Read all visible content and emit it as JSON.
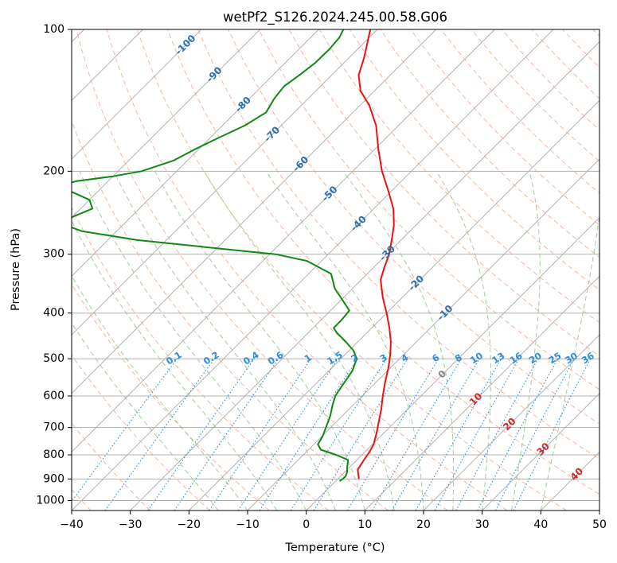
{
  "chart_data": {
    "type": "line",
    "subtype": "skew-t log-p",
    "title": "wetPf2_S126.2024.245.00.58.G06",
    "xlabel": "Temperature (°C)",
    "ylabel": "Pressure (hPa)",
    "xlim": [
      -40,
      50
    ],
    "ylim": [
      1050,
      100
    ],
    "y_scale": "log",
    "grid": true,
    "x_ticks": [
      -40,
      -30,
      -20,
      -10,
      0,
      10,
      20,
      30,
      40,
      50
    ],
    "x_tick_labels": [
      "−40",
      "−30",
      "−20",
      "−10",
      "0",
      "10",
      "20",
      "30",
      "40",
      "50"
    ],
    "y_ticks": [
      1000,
      900,
      800,
      700,
      600,
      500,
      400,
      300,
      200,
      100
    ],
    "y_tick_labels": [
      "1000",
      "900",
      "800",
      "700",
      "600",
      "500",
      "400",
      "300",
      "200",
      "100"
    ],
    "series": [
      {
        "key": "temperature",
        "color": "#ee1111",
        "points": [
          {
            "p": 900,
            "t": 3.6
          },
          {
            "p": 860,
            "t": 1.8
          },
          {
            "p": 820,
            "t": 1.2
          },
          {
            "p": 790,
            "t": 0.8
          },
          {
            "p": 760,
            "t": 0.2
          },
          {
            "p": 720,
            "t": -1.2
          },
          {
            "p": 680,
            "t": -2.8
          },
          {
            "p": 640,
            "t": -4.5
          },
          {
            "p": 600,
            "t": -6.5
          },
          {
            "p": 560,
            "t": -8.5
          },
          {
            "p": 520,
            "t": -10.5
          },
          {
            "p": 490,
            "t": -12.3
          },
          {
            "p": 460,
            "t": -14.4
          },
          {
            "p": 430,
            "t": -17.0
          },
          {
            "p": 400,
            "t": -20.0
          },
          {
            "p": 370,
            "t": -23.4
          },
          {
            "p": 340,
            "t": -26.7
          },
          {
            "p": 320,
            "t": -28.2
          },
          {
            "p": 300,
            "t": -29.6
          },
          {
            "p": 280,
            "t": -31.6
          },
          {
            "p": 260,
            "t": -33.8
          },
          {
            "p": 240,
            "t": -36.7
          },
          {
            "p": 220,
            "t": -40.6
          },
          {
            "p": 200,
            "t": -45.0
          },
          {
            "p": 180,
            "t": -49.3
          },
          {
            "p": 160,
            "t": -53.8
          },
          {
            "p": 145,
            "t": -58.4
          },
          {
            "p": 135,
            "t": -62.4
          },
          {
            "p": 125,
            "t": -65.4
          },
          {
            "p": 115,
            "t": -67.4
          },
          {
            "p": 108,
            "t": -69.1
          },
          {
            "p": 100,
            "t": -71.2
          }
        ]
      },
      {
        "key": "dewpoint",
        "color": "#118811",
        "points": [
          {
            "p": 910,
            "t": 0.7
          },
          {
            "p": 890,
            "t": 0.9
          },
          {
            "p": 870,
            "t": 0.4
          },
          {
            "p": 850,
            "t": -0.4
          },
          {
            "p": 820,
            "t": -1.5
          },
          {
            "p": 800,
            "t": -4.4
          },
          {
            "p": 780,
            "t": -7.9
          },
          {
            "p": 760,
            "t": -9.3
          },
          {
            "p": 730,
            "t": -9.9
          },
          {
            "p": 700,
            "t": -10.8
          },
          {
            "p": 660,
            "t": -12.1
          },
          {
            "p": 630,
            "t": -13.4
          },
          {
            "p": 600,
            "t": -14.6
          },
          {
            "p": 560,
            "t": -15.4
          },
          {
            "p": 530,
            "t": -16.0
          },
          {
            "p": 500,
            "t": -17.3
          },
          {
            "p": 480,
            "t": -19.3
          },
          {
            "p": 460,
            "t": -22.1
          },
          {
            "p": 440,
            "t": -25.2
          },
          {
            "p": 430,
            "t": -26.5
          },
          {
            "p": 415,
            "t": -26.5
          },
          {
            "p": 395,
            "t": -26.8
          },
          {
            "p": 375,
            "t": -29.8
          },
          {
            "p": 355,
            "t": -33.0
          },
          {
            "p": 330,
            "t": -36.2
          },
          {
            "p": 310,
            "t": -42.5
          },
          {
            "p": 300,
            "t": -49.0
          },
          {
            "p": 293,
            "t": -58.0
          },
          {
            "p": 280,
            "t": -75.0
          },
          {
            "p": 268,
            "t": -86.0
          },
          {
            "p": 260,
            "t": -90.0
          },
          {
            "p": 250,
            "t": -90.0
          },
          {
            "p": 240,
            "t": -88.0
          },
          {
            "p": 230,
            "t": -90.0
          },
          {
            "p": 220,
            "t": -95.0
          },
          {
            "p": 215,
            "t": -97.5
          },
          {
            "p": 210,
            "t": -95.5
          },
          {
            "p": 205,
            "t": -90.0
          },
          {
            "p": 200,
            "t": -86.0
          },
          {
            "p": 190,
            "t": -82.4
          },
          {
            "p": 180,
            "t": -80.7
          },
          {
            "p": 170,
            "t": -78.6
          },
          {
            "p": 160,
            "t": -76.2
          },
          {
            "p": 150,
            "t": -74.8
          },
          {
            "p": 140,
            "t": -75.8
          },
          {
            "p": 132,
            "t": -76.2
          },
          {
            "p": 125,
            "t": -75.5
          },
          {
            "p": 118,
            "t": -74.9
          },
          {
            "p": 110,
            "t": -74.8
          },
          {
            "p": 104,
            "t": -75.1
          },
          {
            "p": 100,
            "t": -75.8
          }
        ]
      }
    ],
    "background_lines": {
      "isotherms": {
        "color": "#aaaaaa",
        "style": "solid",
        "labels": [
          "-100",
          "-90",
          "-80",
          "-70",
          "-60",
          "-50",
          "-40",
          "-30",
          "-20",
          "-10"
        ],
        "label_color": "#2a6fb0"
      },
      "dry_adiabats": {
        "color": "#f4a582",
        "style": "dashed"
      },
      "moist_adiabats": {
        "color": "#8fbf7f",
        "style": "dashed"
      },
      "mixing_ratio_lines": {
        "color": "#2b8ce0",
        "style": "dotted",
        "labels": [
          "0.1",
          "0.2",
          "0.4",
          "0.6",
          "1",
          "1.5",
          "2",
          "3",
          "4",
          "6",
          "8",
          "10",
          "13",
          "16",
          "20",
          "25",
          "30",
          "36"
        ]
      },
      "warm_isotherm_labels": [
        {
          "text": "0",
          "color": "#888888"
        },
        {
          "text": "10",
          "color": "#d62728"
        },
        {
          "text": "20",
          "color": "#d62728"
        },
        {
          "text": "30",
          "color": "#d62728"
        },
        {
          "text": "40",
          "color": "#d62728"
        }
      ]
    }
  }
}
